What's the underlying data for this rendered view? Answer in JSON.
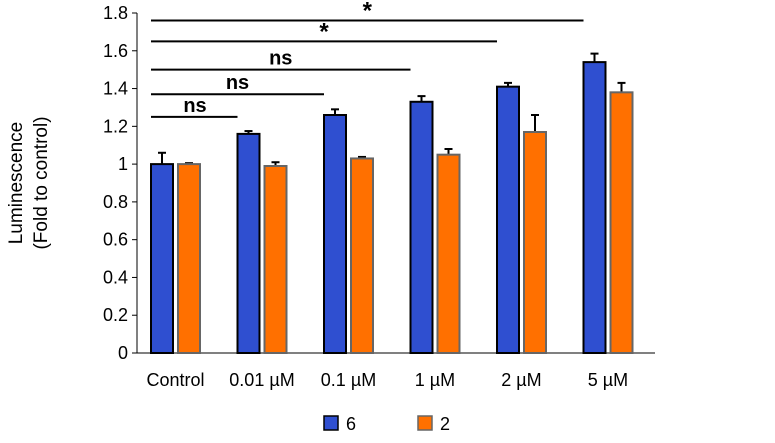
{
  "chart_data": {
    "type": "bar",
    "title": "",
    "xlabel": "",
    "ylabel": "Luminescence",
    "ylabel2": "(Fold to control)",
    "ylim": [
      0,
      1.8
    ],
    "yticks": [
      "0",
      "0.2",
      "0.4",
      "0.6",
      "0.8",
      "1",
      "1.2",
      "1.4",
      "1.6",
      "1.8"
    ],
    "grid": false,
    "legend_position": "bottom",
    "categories": [
      "Control",
      "0.01 µM",
      "0.1 µM",
      "1 µM",
      "2 µM",
      "5 µM"
    ],
    "series": [
      {
        "name": "6",
        "color": "#2f4fd0",
        "values": [
          1.0,
          1.16,
          1.26,
          1.33,
          1.41,
          1.54
        ],
        "errors": [
          0.06,
          0.015,
          0.03,
          0.03,
          0.02,
          0.045
        ]
      },
      {
        "name": "2",
        "color": "#ff7000",
        "values": [
          1.0,
          0.99,
          1.03,
          1.05,
          1.17,
          1.38
        ],
        "errors": [
          0.005,
          0.02,
          0.008,
          0.03,
          0.09,
          0.05
        ]
      }
    ],
    "annotations": [
      {
        "label": "ns",
        "from": "Control",
        "to": "0.01 µM",
        "y": 1.25
      },
      {
        "label": "ns",
        "from": "Control",
        "to": "0.1 µM",
        "y": 1.37
      },
      {
        "label": "ns",
        "from": "Control",
        "to": "1 µM",
        "y": 1.5
      },
      {
        "label": "*",
        "from": "Control",
        "to": "2 µM",
        "y": 1.65
      },
      {
        "label": "*",
        "from": "Control",
        "to": "5 µM",
        "y": 1.76
      }
    ]
  }
}
